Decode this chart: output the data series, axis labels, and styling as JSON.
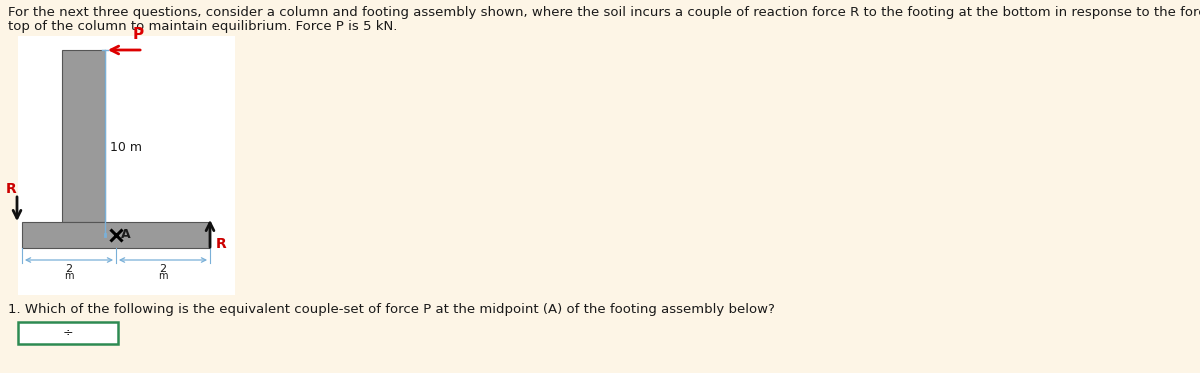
{
  "bg_color": "#fdf5e6",
  "diagram_bg": "#ffffff",
  "title_line1": "For the next three questions, consider a column and footing assembly shown, where the soil incurs a couple of reaction force R to the footing at the bottom in response to the force P applied at the",
  "title_line2": "top of the column to maintain equilibrium. Force P is 5 kN.",
  "question_text": "1. Which of the following is the equivalent couple-set of force P at the midpoint (A) of the footing assembly below?",
  "column_color": "#9a9a9a",
  "footing_color": "#9a9a9a",
  "dim_line_color": "#7ab0d8",
  "arrow_color_P": "#dd0000",
  "arrow_color_R_left": "#111111",
  "arrow_color_R_right": "#111111",
  "label_color_R": "#cc0000",
  "label_10m": "10 m",
  "label_P": "P",
  "label_R_left": "R",
  "label_R_right": "R",
  "label_A": "A",
  "title_fontsize": 9.5,
  "question_fontsize": 9.5
}
